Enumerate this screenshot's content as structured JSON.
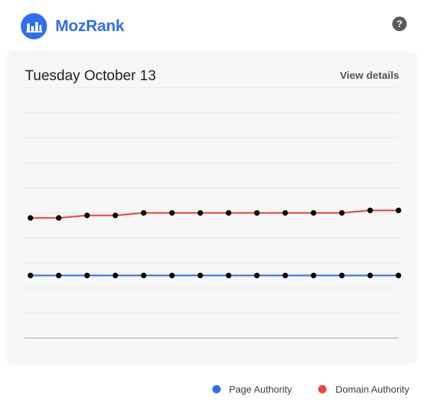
{
  "app": {
    "title": "MozRank",
    "logo_icon": "bar-chart-icon",
    "help_label": "?",
    "help_icon": "help-icon"
  },
  "card": {
    "date": "Tuesday October 13",
    "view_details_label": "View details"
  },
  "colors": {
    "brand": "#2e6ff2",
    "page_authority": "#2e6ff2",
    "domain_authority": "#f04438",
    "point": "#000000"
  },
  "chart_data": {
    "type": "line",
    "ylim": [
      0,
      100
    ],
    "grid": true,
    "legend": "bottom-right",
    "points_per_series": 14,
    "series": [
      {
        "name": "Page Authority",
        "color": "#2e6ff2",
        "values": [
          25,
          25,
          25,
          25,
          25,
          25,
          25,
          25,
          25,
          25,
          25,
          25,
          25,
          25
        ]
      },
      {
        "name": "Domain Authority",
        "color": "#f04438",
        "values": [
          48,
          48,
          49,
          49,
          50,
          50,
          50,
          50,
          50,
          50,
          50,
          50,
          51,
          51
        ]
      }
    ]
  },
  "legend": [
    {
      "label": "Page Authority",
      "color": "#2e6ff2"
    },
    {
      "label": "Domain Authority",
      "color": "#f04438"
    }
  ]
}
